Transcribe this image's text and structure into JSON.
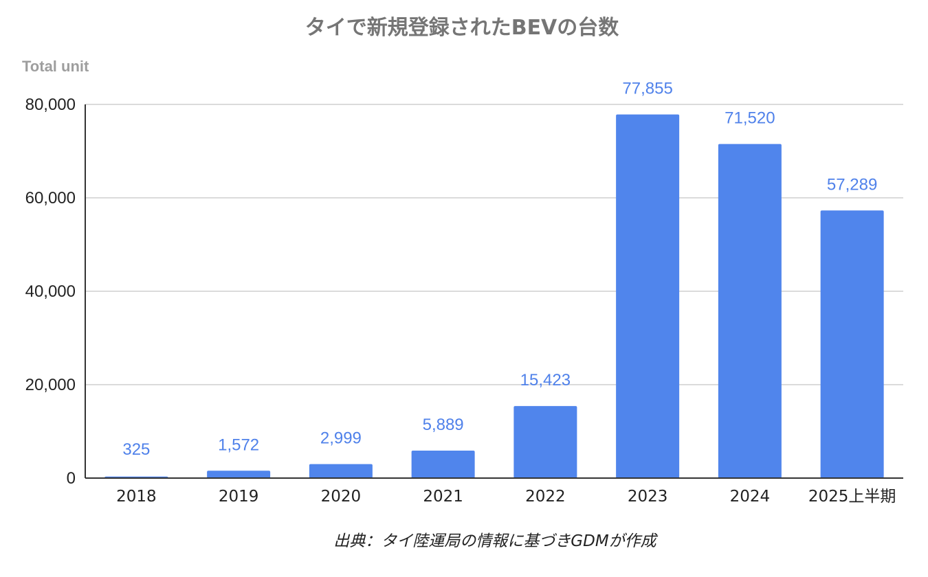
{
  "chart_data": {
    "type": "bar",
    "title": "タイで新規登録されたBEVの台数",
    "ylabel": "Total unit",
    "xlabel": "",
    "categories": [
      "2018",
      "2019",
      "2020",
      "2021",
      "2022",
      "2023",
      "2024",
      "2025上半期"
    ],
    "values": [
      325,
      1572,
      2999,
      5889,
      15423,
      77855,
      71520,
      57289
    ],
    "value_labels": [
      "325",
      "1,572",
      "2,999",
      "5,889",
      "15,423",
      "77,855",
      "71,520",
      "57,289"
    ],
    "ylim": [
      0,
      80000
    ],
    "yticks": [
      0,
      20000,
      40000,
      60000,
      80000
    ],
    "ytick_labels": [
      "0",
      "20,000",
      "40,000",
      "60,000",
      "80,000"
    ],
    "grid": true,
    "bar_color": "#5085ec",
    "label_color": "#4f81ea",
    "footnote": "出典：タイ陸運局の情報に基づきGDMが作成"
  }
}
